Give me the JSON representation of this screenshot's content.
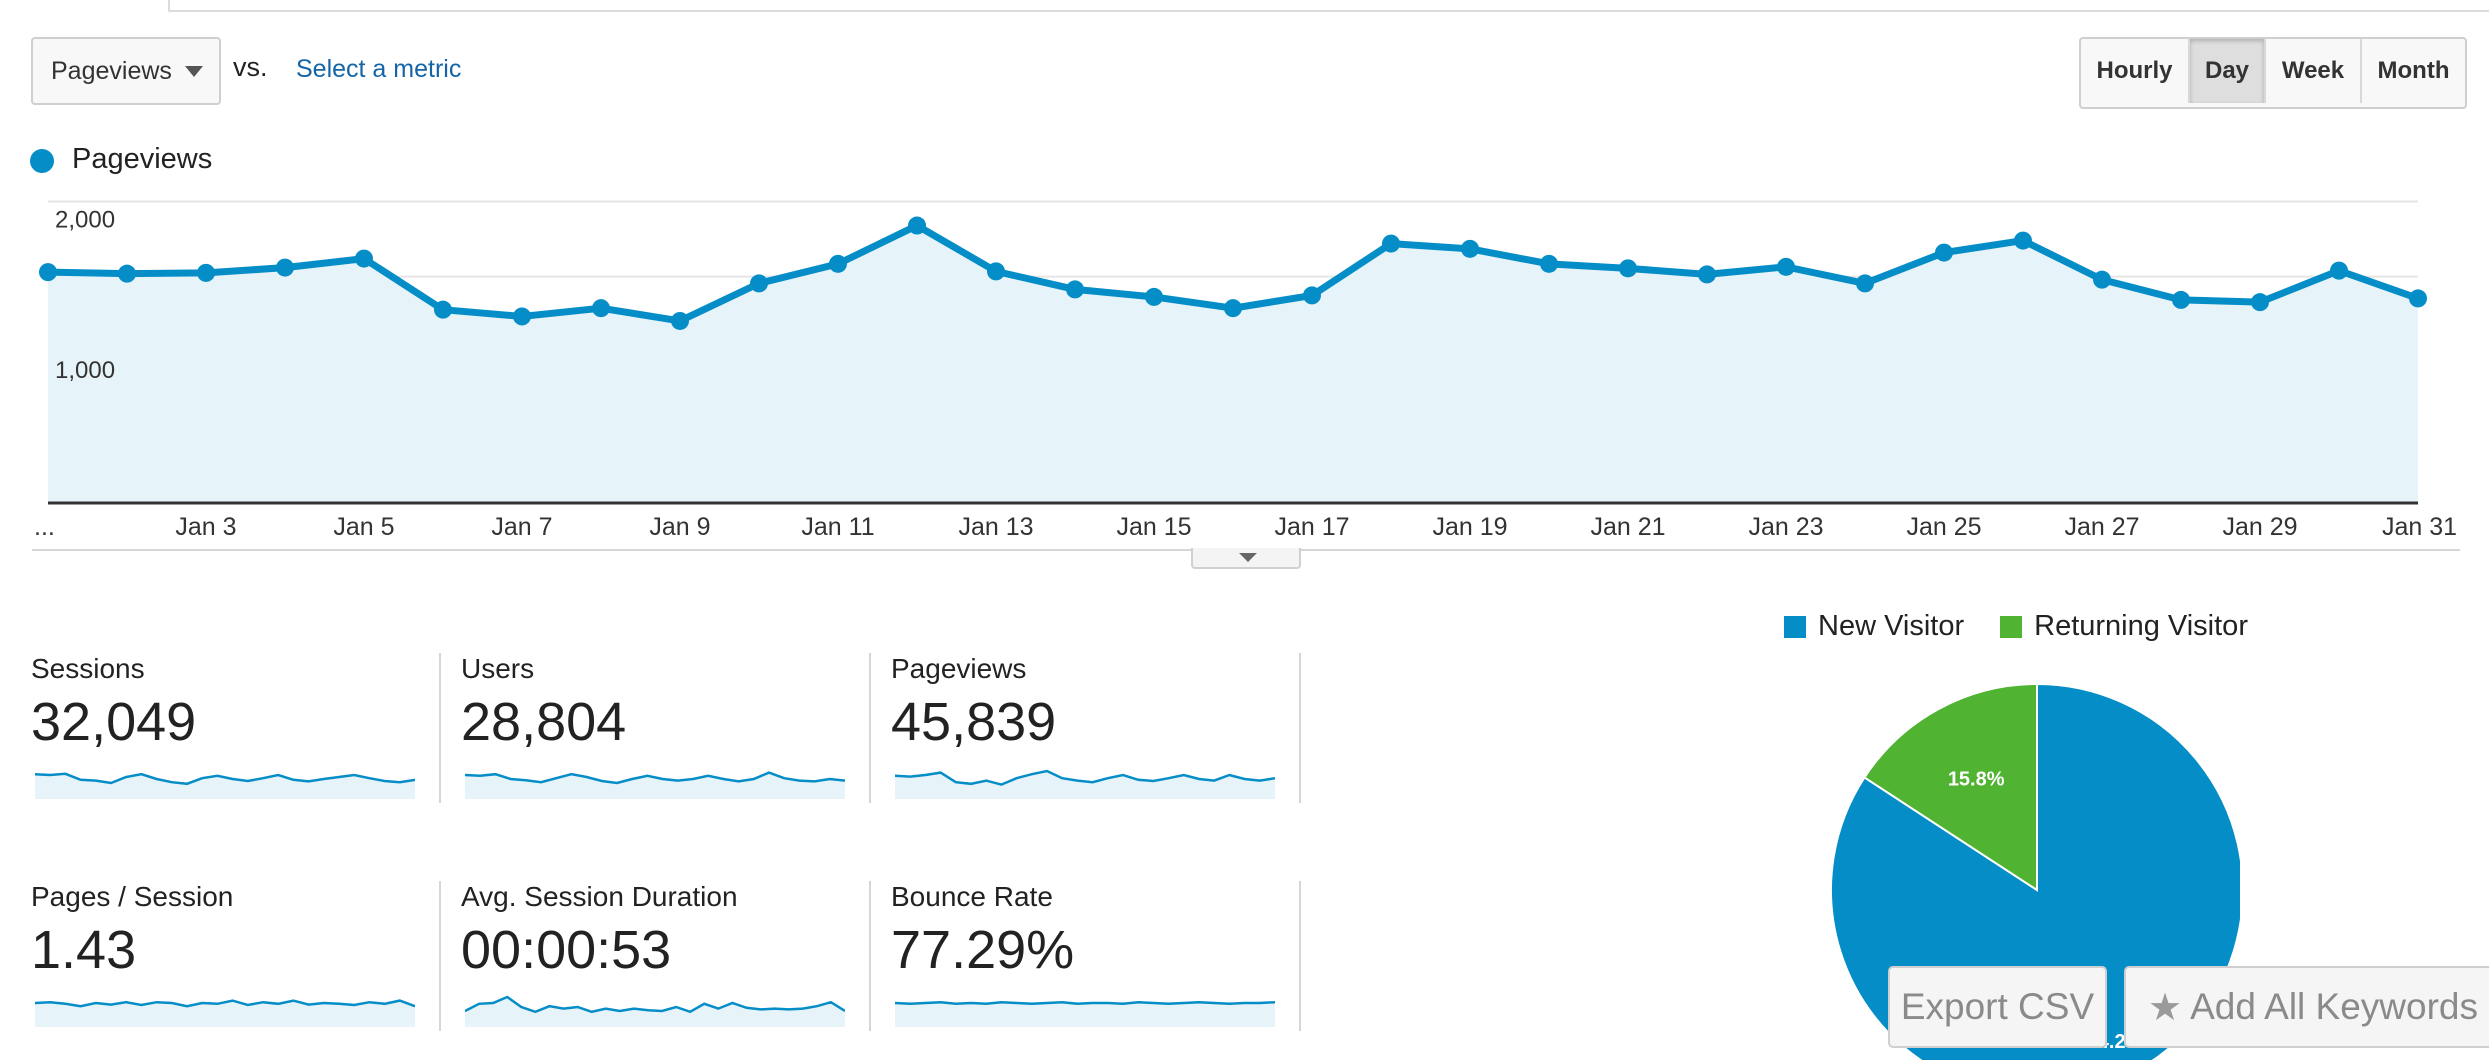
{
  "toolbar": {
    "metric_select": "Pageviews",
    "vs_label": "vs.",
    "select_metric_link": "Select a metric",
    "granularity": [
      {
        "label": "Hourly",
        "active": false
      },
      {
        "label": "Day",
        "active": true
      },
      {
        "label": "Week",
        "active": false
      },
      {
        "label": "Month",
        "active": false
      }
    ]
  },
  "colors": {
    "primary": "#058dc7",
    "area_fill": "#e6f3f9",
    "new_visitor": "#058dc7",
    "returning_visitor": "#50b432",
    "link": "#1565a6"
  },
  "chart_data": [
    {
      "type": "area",
      "series": [
        {
          "name": "Pageviews",
          "x": [
            "Jan 1",
            "Jan 2",
            "Jan 3",
            "Jan 4",
            "Jan 5",
            "Jan 6",
            "Jan 7",
            "Jan 8",
            "Jan 9",
            "Jan 10",
            "Jan 11",
            "Jan 12",
            "Jan 13",
            "Jan 14",
            "Jan 15",
            "Jan 16",
            "Jan 17",
            "Jan 18",
            "Jan 19",
            "Jan 20",
            "Jan 21",
            "Jan 22",
            "Jan 23",
            "Jan 24",
            "Jan 25",
            "Jan 26",
            "Jan 27",
            "Jan 28",
            "Jan 29",
            "Jan 30",
            "Jan 31"
          ],
          "values": [
            1530,
            1520,
            1525,
            1560,
            1620,
            1280,
            1235,
            1290,
            1205,
            1455,
            1585,
            1840,
            1535,
            1415,
            1365,
            1290,
            1375,
            1720,
            1685,
            1585,
            1555,
            1515,
            1565,
            1455,
            1660,
            1740,
            1480,
            1345,
            1330,
            1540,
            1355
          ]
        }
      ],
      "x_tick_labels": [
        "...",
        "Jan 3",
        "Jan 5",
        "Jan 7",
        "Jan 9",
        "Jan 11",
        "Jan 13",
        "Jan 15",
        "Jan 17",
        "Jan 19",
        "Jan 21",
        "Jan 23",
        "Jan 25",
        "Jan 27",
        "Jan 29",
        "Jan 31"
      ],
      "y_tick_labels": [
        "2,000",
        "1,000"
      ],
      "ylim": [
        0,
        2000
      ],
      "grid": true,
      "legend": "top-left"
    },
    {
      "type": "pie",
      "categories": [
        "New Visitor",
        "Returning Visitor"
      ],
      "values": [
        84.2,
        15.8
      ],
      "data_labels": [
        "84.2%",
        "15.8%"
      ],
      "legend": "top"
    }
  ],
  "scorecards": [
    {
      "label": "Sessions",
      "value": "32,049",
      "spark": [
        0.62,
        0.6,
        0.63,
        0.48,
        0.46,
        0.4,
        0.55,
        0.62,
        0.5,
        0.42,
        0.38,
        0.52,
        0.58,
        0.5,
        0.45,
        0.52,
        0.6,
        0.48,
        0.44,
        0.5,
        0.55,
        0.6,
        0.52,
        0.45,
        0.42,
        0.48
      ]
    },
    {
      "label": "Users",
      "value": "28,804",
      "spark": [
        0.6,
        0.58,
        0.62,
        0.5,
        0.47,
        0.42,
        0.52,
        0.62,
        0.55,
        0.45,
        0.4,
        0.5,
        0.58,
        0.5,
        0.46,
        0.5,
        0.58,
        0.5,
        0.44,
        0.5,
        0.66,
        0.52,
        0.46,
        0.44,
        0.5,
        0.46
      ]
    },
    {
      "label": "Pageviews",
      "value": "45,839",
      "spark": [
        0.58,
        0.56,
        0.6,
        0.66,
        0.42,
        0.38,
        0.46,
        0.36,
        0.52,
        0.62,
        0.7,
        0.52,
        0.46,
        0.42,
        0.52,
        0.6,
        0.48,
        0.45,
        0.52,
        0.6,
        0.5,
        0.46,
        0.6,
        0.5,
        0.46,
        0.52
      ]
    },
    {
      "label": "Pages / Session",
      "value": "1.43",
      "spark": [
        0.6,
        0.62,
        0.58,
        0.52,
        0.6,
        0.56,
        0.62,
        0.55,
        0.62,
        0.6,
        0.52,
        0.6,
        0.58,
        0.66,
        0.55,
        0.62,
        0.58,
        0.66,
        0.56,
        0.6,
        0.58,
        0.55,
        0.62,
        0.58,
        0.66,
        0.52
      ]
    },
    {
      "label": "Avg. Session Duration",
      "value": "00:00:53",
      "spark": [
        0.4,
        0.58,
        0.6,
        0.75,
        0.5,
        0.38,
        0.52,
        0.46,
        0.5,
        0.38,
        0.46,
        0.4,
        0.46,
        0.42,
        0.4,
        0.5,
        0.38,
        0.58,
        0.46,
        0.6,
        0.48,
        0.44,
        0.46,
        0.44,
        0.46,
        0.52,
        0.62,
        0.4
      ]
    },
    {
      "label": "Bounce Rate",
      "value": "77.29%",
      "spark": [
        0.6,
        0.58,
        0.6,
        0.62,
        0.58,
        0.6,
        0.58,
        0.62,
        0.6,
        0.58,
        0.6,
        0.62,
        0.58,
        0.6,
        0.6,
        0.58,
        0.62,
        0.6,
        0.58,
        0.6,
        0.62,
        0.6,
        0.58,
        0.6,
        0.6,
        0.62
      ]
    }
  ],
  "buttons": {
    "export_csv": "Export CSV",
    "add_all_keywords": "Add All Keywords",
    "star_icon": "star-icon"
  }
}
